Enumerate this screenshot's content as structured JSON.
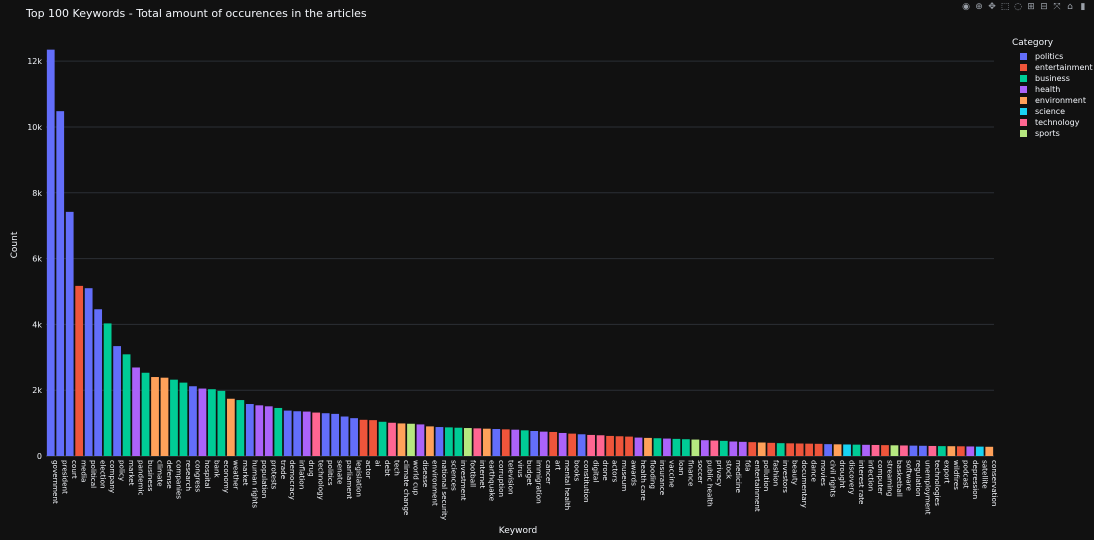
{
  "toolbar": {
    "icons": [
      "camera-icon",
      "zoom-icon",
      "pan-icon",
      "box-select-icon",
      "lasso-icon",
      "zoom-in-icon",
      "zoom-out-icon",
      "autoscale-icon",
      "home-icon",
      "plotly-logo-icon"
    ],
    "glyphs": [
      "◉",
      "⊕",
      "✥",
      "⬚",
      "◌",
      "⊞",
      "⊟",
      "⤧",
      "⌂",
      "▮"
    ]
  },
  "legend_title": "Category",
  "categories": [
    {
      "name": "politics",
      "color": "#636efa"
    },
    {
      "name": "entertainment",
      "color": "#ef553b"
    },
    {
      "name": "business",
      "color": "#00cc96"
    },
    {
      "name": "health",
      "color": "#ab63fa"
    },
    {
      "name": "environment",
      "color": "#ffa15a"
    },
    {
      "name": "science",
      "color": "#19d3f3"
    },
    {
      "name": "technology",
      "color": "#ff6692"
    },
    {
      "name": "sports",
      "color": "#b6e880"
    }
  ],
  "chart_data": {
    "type": "bar",
    "title": "Top 100 Keywords - Total amount of occurences in the articles",
    "xlabel": "Keyword",
    "ylabel": "Count",
    "ylim": [
      0,
      12400
    ],
    "yticks": [
      0,
      2000,
      4000,
      6000,
      8000,
      10000,
      12000
    ],
    "ytick_labels": [
      "0",
      "2k",
      "4k",
      "6k",
      "8k",
      "10k",
      "12k"
    ],
    "grid": true,
    "legend_position": "top-right",
    "bars": [
      {
        "keyword": "government",
        "category": "politics",
        "value": 12350
      },
      {
        "keyword": "president",
        "category": "politics",
        "value": 10480
      },
      {
        "keyword": "court",
        "category": "politics",
        "value": 7420
      },
      {
        "keyword": "media",
        "category": "entertainment",
        "value": 5170
      },
      {
        "keyword": "political",
        "category": "politics",
        "value": 5100
      },
      {
        "keyword": "election",
        "category": "politics",
        "value": 4460
      },
      {
        "keyword": "company",
        "category": "business",
        "value": 4030
      },
      {
        "keyword": "policy",
        "category": "politics",
        "value": 3340
      },
      {
        "keyword": "market",
        "category": "business",
        "value": 3090
      },
      {
        "keyword": "pandemic",
        "category": "health",
        "value": 2690
      },
      {
        "keyword": "business",
        "category": "business",
        "value": 2530
      },
      {
        "keyword": "climate",
        "category": "environment",
        "value": 2400
      },
      {
        "keyword": "defense",
        "category": "environment",
        "value": 2380
      },
      {
        "keyword": "companies",
        "category": "business",
        "value": 2320
      },
      {
        "keyword": "research",
        "category": "business",
        "value": 2230
      },
      {
        "keyword": "congress",
        "category": "politics",
        "value": 2120
      },
      {
        "keyword": "hospital",
        "category": "health",
        "value": 2050
      },
      {
        "keyword": "bank",
        "category": "business",
        "value": 2030
      },
      {
        "keyword": "economy",
        "category": "business",
        "value": 1980
      },
      {
        "keyword": "weather",
        "category": "environment",
        "value": 1740
      },
      {
        "keyword": "market",
        "category": "business",
        "value": 1700
      },
      {
        "keyword": "human rights",
        "category": "politics",
        "value": 1580
      },
      {
        "keyword": "population",
        "category": "health",
        "value": 1540
      },
      {
        "keyword": "protests",
        "category": "health",
        "value": 1510
      },
      {
        "keyword": "trade",
        "category": "business",
        "value": 1460
      },
      {
        "keyword": "democracy",
        "category": "politics",
        "value": 1380
      },
      {
        "keyword": "inflation",
        "category": "politics",
        "value": 1360
      },
      {
        "keyword": "drug",
        "category": "health",
        "value": 1350
      },
      {
        "keyword": "technology",
        "category": "technology",
        "value": 1320
      },
      {
        "keyword": "politics",
        "category": "politics",
        "value": 1300
      },
      {
        "keyword": "senate",
        "category": "politics",
        "value": 1280
      },
      {
        "keyword": "parliament",
        "category": "politics",
        "value": 1200
      },
      {
        "keyword": "legislation",
        "category": "politics",
        "value": 1150
      },
      {
        "keyword": "actor",
        "category": "entertainment",
        "value": 1100
      },
      {
        "keyword": "ai",
        "category": "entertainment",
        "value": 1090
      },
      {
        "keyword": "debt",
        "category": "business",
        "value": 1040
      },
      {
        "keyword": "tech",
        "category": "technology",
        "value": 1010
      },
      {
        "keyword": "climate change",
        "category": "environment",
        "value": 990
      },
      {
        "keyword": "world cup",
        "category": "sports",
        "value": 980
      },
      {
        "keyword": "disease",
        "category": "health",
        "value": 960
      },
      {
        "keyword": "environment",
        "category": "environment",
        "value": 900
      },
      {
        "keyword": "national security",
        "category": "politics",
        "value": 880
      },
      {
        "keyword": "sciences",
        "category": "business",
        "value": 870
      },
      {
        "keyword": "investment",
        "category": "business",
        "value": 860
      },
      {
        "keyword": "football",
        "category": "sports",
        "value": 850
      },
      {
        "keyword": "internet",
        "category": "technology",
        "value": 840
      },
      {
        "keyword": "earthquake",
        "category": "environment",
        "value": 830
      },
      {
        "keyword": "corruption",
        "category": "politics",
        "value": 820
      },
      {
        "keyword": "television",
        "category": "entertainment",
        "value": 810
      },
      {
        "keyword": "virus",
        "category": "health",
        "value": 800
      },
      {
        "keyword": "budget",
        "category": "business",
        "value": 780
      },
      {
        "keyword": "immigration",
        "category": "politics",
        "value": 760
      },
      {
        "keyword": "cancer",
        "category": "health",
        "value": 740
      },
      {
        "keyword": "art",
        "category": "entertainment",
        "value": 730
      },
      {
        "keyword": "mental health",
        "category": "health",
        "value": 700
      },
      {
        "keyword": "books",
        "category": "entertainment",
        "value": 680
      },
      {
        "keyword": "constitution",
        "category": "politics",
        "value": 660
      },
      {
        "keyword": "digital",
        "category": "technology",
        "value": 640
      },
      {
        "keyword": "drone",
        "category": "technology",
        "value": 630
      },
      {
        "keyword": "actors",
        "category": "entertainment",
        "value": 610
      },
      {
        "keyword": "museum",
        "category": "entertainment",
        "value": 600
      },
      {
        "keyword": "awards",
        "category": "entertainment",
        "value": 590
      },
      {
        "keyword": "health care",
        "category": "health",
        "value": 560
      },
      {
        "keyword": "flooding",
        "category": "environment",
        "value": 550
      },
      {
        "keyword": "insurance",
        "category": "business",
        "value": 540
      },
      {
        "keyword": "vaccine",
        "category": "health",
        "value": 530
      },
      {
        "keyword": "loan",
        "category": "business",
        "value": 520
      },
      {
        "keyword": "finance",
        "category": "business",
        "value": 510
      },
      {
        "keyword": "soccer",
        "category": "sports",
        "value": 500
      },
      {
        "keyword": "public health",
        "category": "health",
        "value": 480
      },
      {
        "keyword": "privacy",
        "category": "technology",
        "value": 470
      },
      {
        "keyword": "stock",
        "category": "business",
        "value": 460
      },
      {
        "keyword": "medicine",
        "category": "health",
        "value": 440
      },
      {
        "keyword": "fda",
        "category": "health",
        "value": 430
      },
      {
        "keyword": "entertainment",
        "category": "entertainment",
        "value": 420
      },
      {
        "keyword": "pollution",
        "category": "environment",
        "value": 410
      },
      {
        "keyword": "fashion",
        "category": "entertainment",
        "value": 400
      },
      {
        "keyword": "investors",
        "category": "business",
        "value": 390
      },
      {
        "keyword": "beauty",
        "category": "entertainment",
        "value": 385
      },
      {
        "keyword": "documentary",
        "category": "entertainment",
        "value": 380
      },
      {
        "keyword": "dance",
        "category": "entertainment",
        "value": 375
      },
      {
        "keyword": "movies",
        "category": "entertainment",
        "value": 370
      },
      {
        "keyword": "civil rights",
        "category": "politics",
        "value": 360
      },
      {
        "keyword": "drought",
        "category": "environment",
        "value": 355
      },
      {
        "keyword": "discovery",
        "category": "science",
        "value": 350
      },
      {
        "keyword": "interest rate",
        "category": "business",
        "value": 345
      },
      {
        "keyword": "infection",
        "category": "health",
        "value": 340
      },
      {
        "keyword": "computer",
        "category": "technology",
        "value": 335
      },
      {
        "keyword": "streaming",
        "category": "entertainment",
        "value": 330
      },
      {
        "keyword": "basketball",
        "category": "sports",
        "value": 325
      },
      {
        "keyword": "software",
        "category": "technology",
        "value": 320
      },
      {
        "keyword": "regulation",
        "category": "politics",
        "value": 315
      },
      {
        "keyword": "unemployment",
        "category": "politics",
        "value": 310
      },
      {
        "keyword": "technologies",
        "category": "technology",
        "value": 305
      },
      {
        "keyword": "export",
        "category": "business",
        "value": 300
      },
      {
        "keyword": "wildfires",
        "category": "environment",
        "value": 298
      },
      {
        "keyword": "podcast",
        "category": "entertainment",
        "value": 295
      },
      {
        "keyword": "depression",
        "category": "health",
        "value": 290
      },
      {
        "keyword": "satellite",
        "category": "science",
        "value": 285
      },
      {
        "keyword": "conservation",
        "category": "environment",
        "value": 280
      }
    ]
  }
}
